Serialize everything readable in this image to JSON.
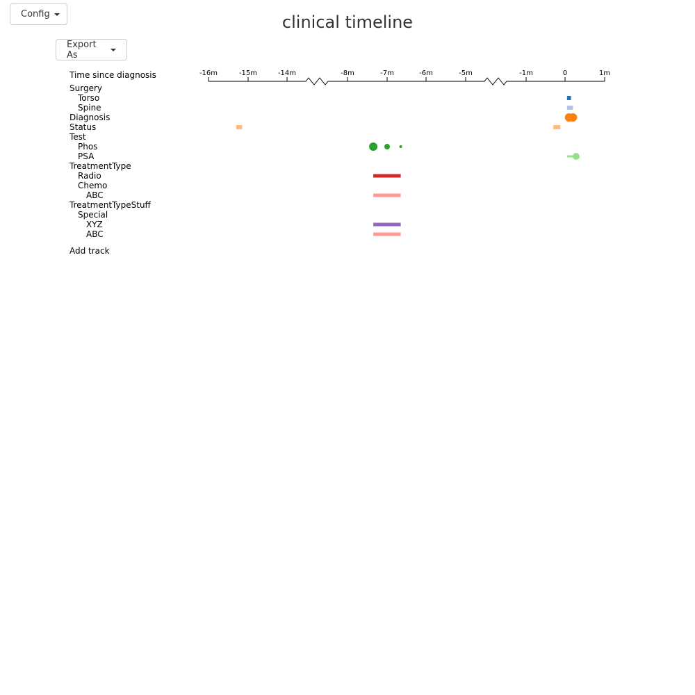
{
  "toolbar": {
    "config_label": "Config",
    "export_label": "Export As"
  },
  "title": "clinical timeline",
  "axis": {
    "label": "Time since diagnosis",
    "ticks": [
      "-16m",
      "-15m",
      "-14m",
      "-8m",
      "-7m",
      "-6m",
      "-5m",
      "-1m",
      "0",
      "1m"
    ]
  },
  "tracks": [
    {
      "label": "Surgery",
      "level": 0
    },
    {
      "label": "Torso",
      "level": 1
    },
    {
      "label": "Spine",
      "level": 1
    },
    {
      "label": "Diagnosis",
      "level": 0
    },
    {
      "label": "Status",
      "level": 0
    },
    {
      "label": "Test",
      "level": 0
    },
    {
      "label": "Phos",
      "level": 1
    },
    {
      "label": "PSA",
      "level": 1
    },
    {
      "label": "TreatmentType",
      "level": 0
    },
    {
      "label": "Radio",
      "level": 1
    },
    {
      "label": "Chemo",
      "level": 1
    },
    {
      "label": "ABC",
      "level": 2
    },
    {
      "label": "TreatmentTypeStuff",
      "level": 0
    },
    {
      "label": "Special",
      "level": 1
    },
    {
      "label": "XYZ",
      "level": 2
    },
    {
      "label": "ABC",
      "level": 2
    }
  ],
  "add_track_label": "Add track",
  "colors": {
    "torso": "#1f77b4",
    "spine": "#aec7e8",
    "diagnosis": "#ff7f0e",
    "status": "#ffbb78",
    "phos": "#2ca02c",
    "psa": "#98df8a",
    "radio": "#d62728",
    "abc": "#ff9896",
    "xyz": "#9467bd"
  },
  "chart_data": {
    "type": "timeline",
    "x_unit": "months since diagnosis",
    "tick_values": [
      -16,
      -15,
      -14,
      -8,
      -7,
      -6,
      -5,
      -1,
      0,
      1
    ],
    "axis_breaks": [
      [
        -14,
        -8
      ],
      [
        -5,
        -1
      ]
    ],
    "events": [
      {
        "track": "Torso",
        "shape": "rect",
        "start": 0.05,
        "end": 0.15,
        "color": "torso"
      },
      {
        "track": "Spine",
        "shape": "rect",
        "start": 0.05,
        "end": 0.2,
        "color": "spine"
      },
      {
        "track": "Diagnosis",
        "shape": "circle",
        "time": 0.1,
        "color": "diagnosis"
      },
      {
        "track": "Diagnosis",
        "shape": "circle",
        "time": 0.2,
        "color": "diagnosis"
      },
      {
        "track": "Status",
        "shape": "rect",
        "start": -15.3,
        "end": -15.15,
        "color": "status"
      },
      {
        "track": "Status",
        "shape": "rect",
        "start": -0.3,
        "end": -0.12,
        "color": "status"
      },
      {
        "track": "Phos",
        "shape": "circle",
        "time": -7.35,
        "size": 6,
        "color": "phos"
      },
      {
        "track": "Phos",
        "shape": "circle",
        "time": -7.0,
        "size": 4,
        "color": "phos"
      },
      {
        "track": "Phos",
        "shape": "circle",
        "time": -6.65,
        "size": 2,
        "color": "phos"
      },
      {
        "track": "PSA",
        "shape": "line",
        "start": 0.05,
        "end": 0.28,
        "color": "psa"
      },
      {
        "track": "PSA",
        "shape": "circle",
        "time": 0.28,
        "size": 5,
        "color": "psa"
      },
      {
        "track": "Radio",
        "shape": "bar",
        "start": -7.35,
        "end": -6.65,
        "color": "radio"
      },
      {
        "track": "ABC",
        "group": "TreatmentType",
        "shape": "bar",
        "start": -7.35,
        "end": -6.65,
        "color": "abc"
      },
      {
        "track": "XYZ",
        "shape": "bar",
        "start": -7.35,
        "end": -6.65,
        "color": "xyz"
      },
      {
        "track": "ABC",
        "group": "TreatmentTypeStuff",
        "shape": "bar",
        "start": -7.35,
        "end": -6.65,
        "color": "abc"
      }
    ]
  }
}
